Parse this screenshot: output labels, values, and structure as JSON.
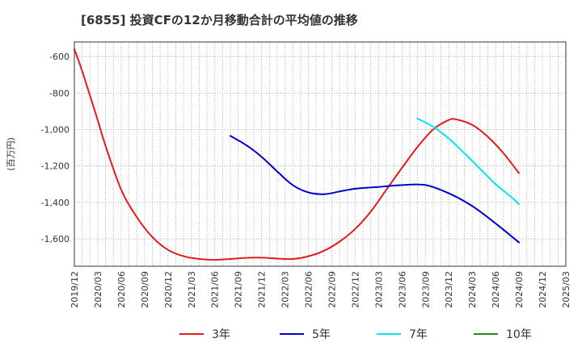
{
  "chart_data": {
    "type": "line",
    "title": "[6855]  投資CFの12か月移動合計の平均値の推移",
    "ylabel": "(百万円)",
    "xlabel": "",
    "ylim": [
      -1750,
      -520
    ],
    "yticks": [
      -600,
      -800,
      -1000,
      -1200,
      -1400,
      -1600
    ],
    "ytick_labels": [
      "-600",
      "-800",
      "-1,000",
      "-1,200",
      "-1,400",
      "-1,600"
    ],
    "xticks": [
      "2019/12",
      "2020/03",
      "2020/06",
      "2020/09",
      "2020/12",
      "2021/03",
      "2021/06",
      "2021/09",
      "2021/12",
      "2022/03",
      "2022/06",
      "2022/09",
      "2022/12",
      "2023/03",
      "2023/06",
      "2023/09",
      "2023/12",
      "2024/03",
      "2024/06",
      "2024/09",
      "2024/12",
      "2025/03"
    ],
    "grid": true,
    "legend_position": "bottom",
    "series": [
      {
        "name": "3年",
        "color": "#e41a1c",
        "points": [
          [
            "2019/12",
            -560
          ],
          [
            "2020/01",
            -680
          ],
          [
            "2020/03",
            -950
          ],
          [
            "2020/04",
            -1090
          ],
          [
            "2020/06",
            -1330
          ],
          [
            "2020/08",
            -1480
          ],
          [
            "2020/10",
            -1590
          ],
          [
            "2020/12",
            -1660
          ],
          [
            "2021/02",
            -1695
          ],
          [
            "2021/04",
            -1710
          ],
          [
            "2021/06",
            -1715
          ],
          [
            "2021/08",
            -1710
          ],
          [
            "2021/10",
            -1704
          ],
          [
            "2021/12",
            -1703
          ],
          [
            "2022/02",
            -1708
          ],
          [
            "2022/04",
            -1710
          ],
          [
            "2022/06",
            -1695
          ],
          [
            "2022/08",
            -1665
          ],
          [
            "2022/10",
            -1615
          ],
          [
            "2022/12",
            -1545
          ],
          [
            "2023/02",
            -1450
          ],
          [
            "2023/04",
            -1330
          ],
          [
            "2023/06",
            -1210
          ],
          [
            "2023/08",
            -1095
          ],
          [
            "2023/10",
            -1000
          ],
          [
            "2023/12",
            -948
          ],
          [
            "2024/01",
            -945
          ],
          [
            "2024/03",
            -975
          ],
          [
            "2024/05",
            -1040
          ],
          [
            "2024/07",
            -1130
          ],
          [
            "2024/09",
            -1240
          ]
        ]
      },
      {
        "name": "5年",
        "color": "#0000cc",
        "points": [
          [
            "2021/08",
            -1035
          ],
          [
            "2021/10",
            -1085
          ],
          [
            "2021/12",
            -1150
          ],
          [
            "2022/02",
            -1230
          ],
          [
            "2022/04",
            -1305
          ],
          [
            "2022/06",
            -1345
          ],
          [
            "2022/08",
            -1355
          ],
          [
            "2022/10",
            -1340
          ],
          [
            "2022/12",
            -1325
          ],
          [
            "2023/03",
            -1315
          ],
          [
            "2023/06",
            -1305
          ],
          [
            "2023/09",
            -1305
          ],
          [
            "2023/12",
            -1350
          ],
          [
            "2024/03",
            -1420
          ],
          [
            "2024/06",
            -1515
          ],
          [
            "2024/09",
            -1620
          ]
        ]
      },
      {
        "name": "7年",
        "color": "#00e5ee",
        "points": [
          [
            "2023/08",
            -940
          ],
          [
            "2023/10",
            -985
          ],
          [
            "2023/12",
            -1050
          ],
          [
            "2024/02",
            -1130
          ],
          [
            "2024/04",
            -1215
          ],
          [
            "2024/06",
            -1300
          ],
          [
            "2024/08",
            -1370
          ],
          [
            "2024/09",
            -1410
          ]
        ]
      },
      {
        "name": "10年",
        "color": "#228b22",
        "points": []
      }
    ]
  }
}
